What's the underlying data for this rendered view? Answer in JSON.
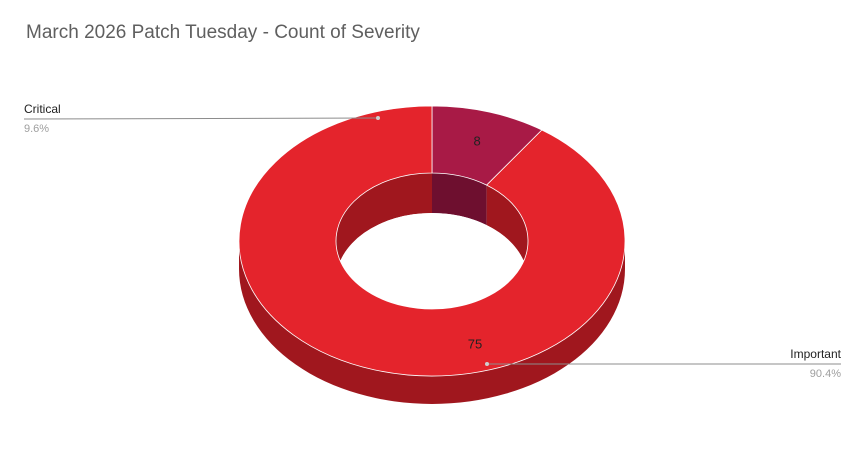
{
  "chart_data": {
    "type": "pie",
    "style": "3d-donut",
    "title": "March 2026 Patch Tuesday - Count of Severity",
    "slices": [
      {
        "label": "Critical",
        "value": 8,
        "percent": "9.6%",
        "color": "#a81a46",
        "side_color": "#6e0f2f"
      },
      {
        "label": "Important",
        "value": 75,
        "percent": "90.4%",
        "color": "#e4242c",
        "side_color": "#a0171e"
      }
    ],
    "legend": "callout-labels"
  }
}
